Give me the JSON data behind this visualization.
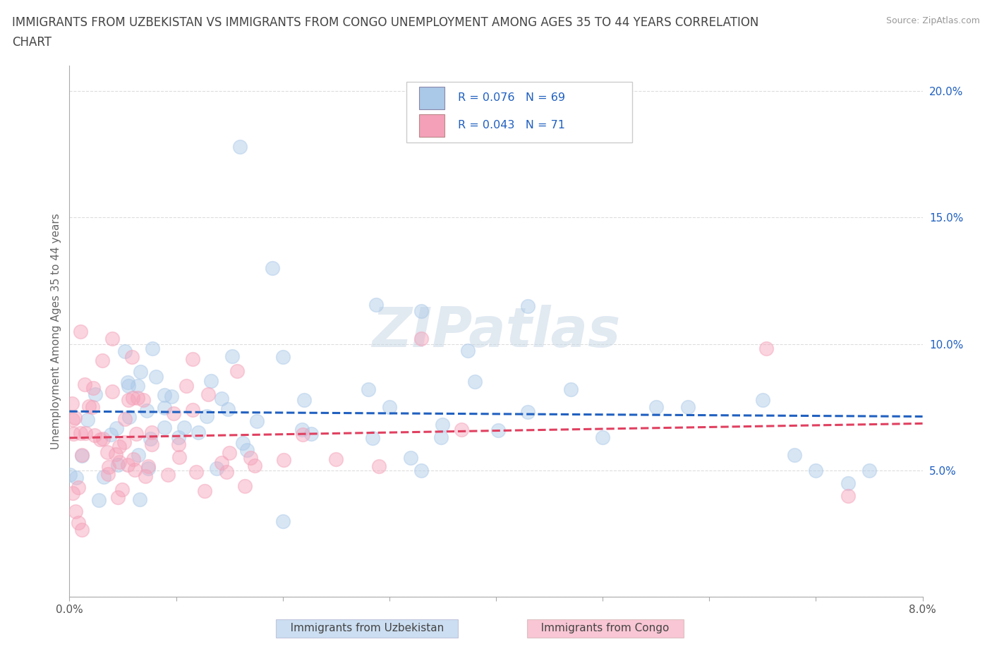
{
  "title_line1": "IMMIGRANTS FROM UZBEKISTAN VS IMMIGRANTS FROM CONGO UNEMPLOYMENT AMONG AGES 35 TO 44 YEARS CORRELATION",
  "title_line2": "CHART",
  "source": "Source: ZipAtlas.com",
  "ylabel_text": "Unemployment Among Ages 35 to 44 years",
  "xmin": 0.0,
  "xmax": 0.08,
  "ymin": 0.0,
  "ymax": 0.21,
  "watermark": "ZIPatlas",
  "uzbekistan_color": "#aac8e8",
  "congo_color": "#f4a0b8",
  "uzbekistan_line_color": "#2060c0",
  "congo_line_color": "#e04060",
  "legend_R_uzbekistan": "0.076",
  "legend_N_uzbekistan": "69",
  "legend_R_congo": "0.043",
  "legend_N_congo": "71",
  "legend_label_uzbekistan": "Immigrants from Uzbekistan",
  "legend_label_congo": "Immigrants from Congo",
  "legend_text_color": "#2060c0",
  "title_color": "#444444",
  "axis_label_color": "#666666",
  "right_tick_color": "#2060c0",
  "grid_color": "#dddddd",
  "background_color": "#ffffff",
  "scatter_size": 200,
  "scatter_alpha": 0.45,
  "scatter_linewidth": 1.2,
  "trend_linewidth": 2.2,
  "trend_linestyle": "--"
}
